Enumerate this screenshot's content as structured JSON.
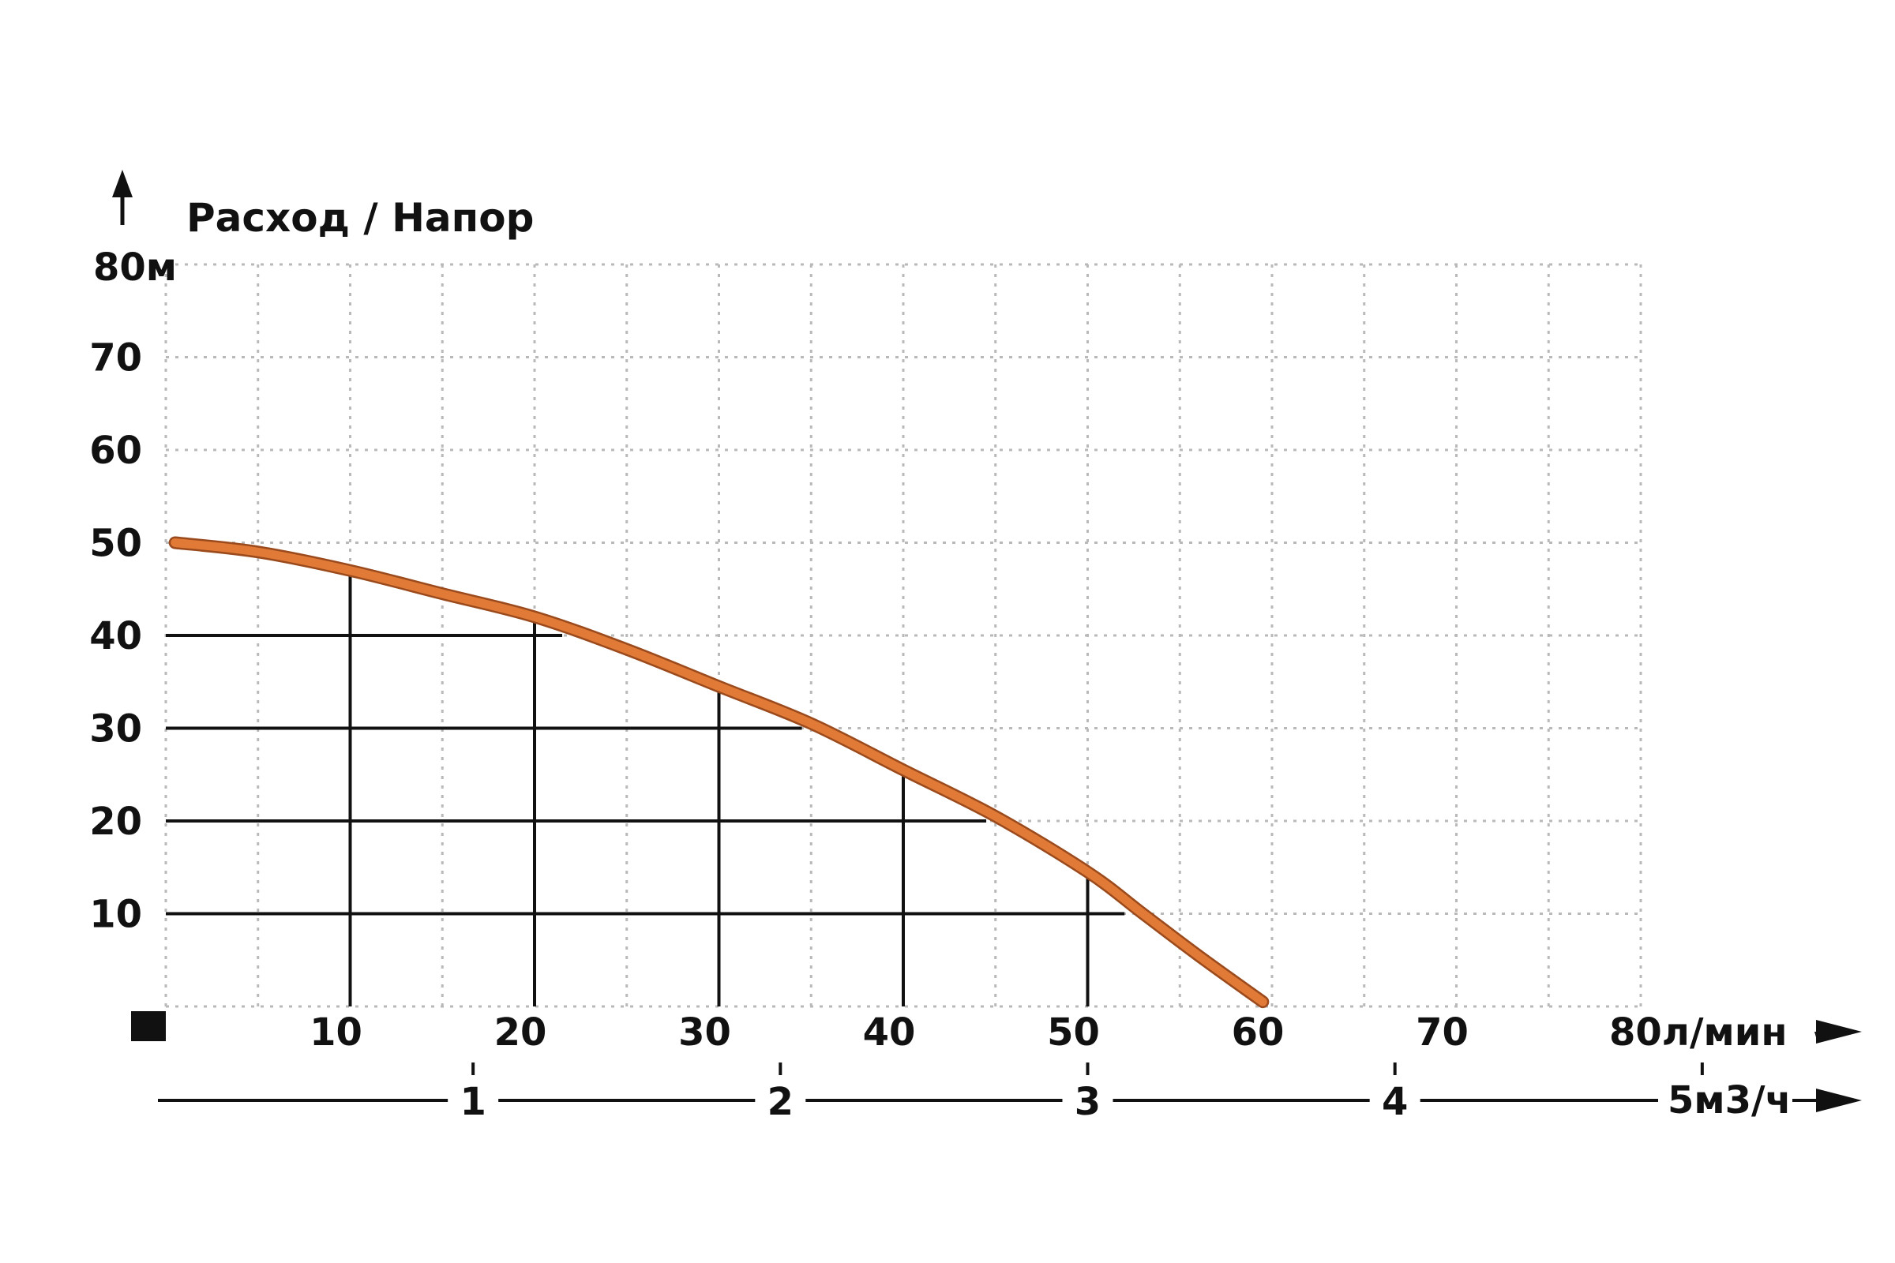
{
  "chart_data": {
    "type": "line",
    "title": "Расход / Напор",
    "y_top_label": "80м",
    "x_end_label": "80л/мин",
    "secondary_axis_end_label": "5м3/ч",
    "xlim": [
      0,
      80
    ],
    "ylim": [
      0,
      80
    ],
    "x_ticks": [
      10,
      20,
      30,
      40,
      50,
      60,
      70,
      80
    ],
    "x_tick_labels": [
      "10",
      "20",
      "30",
      "40",
      "50",
      "60",
      "70"
    ],
    "y_ticks": [
      10,
      20,
      30,
      40,
      50,
      60,
      70,
      80
    ],
    "y_tick_labels": [
      "10",
      "20",
      "30",
      "40",
      "50",
      "60",
      "70"
    ],
    "secondary_axis": {
      "unit_factor_lpm_per_m3h": 16.6667,
      "ticks": [
        1,
        2,
        3,
        4,
        5
      ],
      "tick_labels": [
        "1",
        "2",
        "3",
        "4"
      ]
    },
    "grid": true,
    "legend": "none",
    "series": [
      {
        "x": [
          0.5,
          5,
          10,
          15,
          20,
          25,
          30,
          35,
          40,
          45,
          50,
          53,
          56,
          59.5
        ],
        "y": [
          50,
          49,
          47,
          44.5,
          42,
          38.5,
          34.5,
          30.5,
          25.5,
          20.5,
          14.5,
          10,
          5.5,
          0.5
        ]
      }
    ],
    "reference_lines": {
      "horizontal": [
        {
          "y": 10,
          "to_x": 52
        },
        {
          "y": 20,
          "to_x": 44.5
        },
        {
          "y": 30,
          "to_x": 34.5
        },
        {
          "y": 40,
          "to_x": 21.5
        }
      ],
      "vertical": [
        {
          "x": 10,
          "to_y": 47
        },
        {
          "x": 20,
          "to_y": 42
        },
        {
          "x": 30,
          "to_y": 34.5
        },
        {
          "x": 40,
          "to_y": 25.5
        },
        {
          "x": 50,
          "to_y": 14.5
        }
      ]
    },
    "colors": {
      "curve": "#e07a36",
      "reference_lines": "#111111",
      "grid": "#b9b9b9",
      "text": "#111111"
    }
  }
}
